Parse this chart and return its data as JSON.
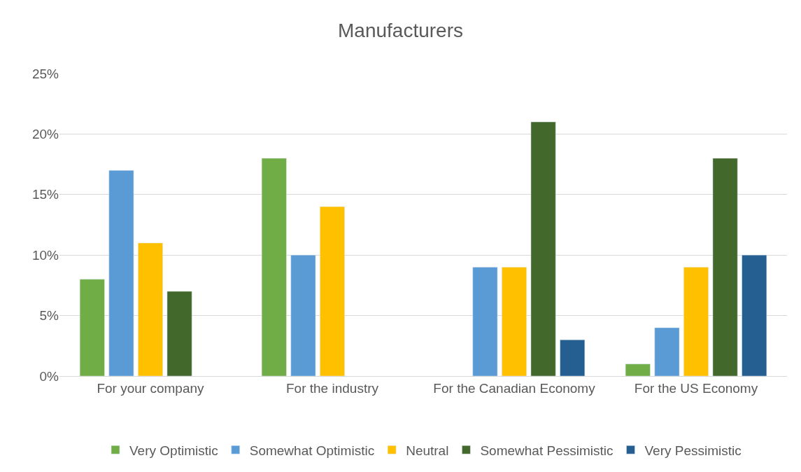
{
  "chart_data": {
    "type": "bar",
    "title": "Manufacturers",
    "categories": [
      "For your company",
      "For the industry",
      "For the Canadian Economy",
      "For the US Economy"
    ],
    "series": [
      {
        "name": "Very Optimistic",
        "color": "#70ad47",
        "values": [
          8,
          18,
          null,
          1
        ]
      },
      {
        "name": "Somewhat Optimistic",
        "color": "#5b9bd5",
        "values": [
          17,
          10,
          9,
          4
        ]
      },
      {
        "name": "Neutral",
        "color": "#ffc000",
        "values": [
          11,
          14,
          9,
          9
        ]
      },
      {
        "name": "Somewhat Pessimistic",
        "color": "#43682b",
        "values": [
          7,
          null,
          21,
          18
        ]
      },
      {
        "name": "Very Pessimistic",
        "color": "#255e91",
        "values": [
          null,
          null,
          3,
          10
        ]
      }
    ],
    "ylim": [
      0,
      25
    ],
    "yticks": [
      {
        "value": 0,
        "label": "0%"
      },
      {
        "value": 5,
        "label": "5%"
      },
      {
        "value": 10,
        "label": "10%"
      },
      {
        "value": 15,
        "label": "15%"
      },
      {
        "value": 20,
        "label": "20%"
      },
      {
        "value": 25,
        "label": "25%"
      }
    ],
    "grid": "y",
    "legend": "bottom"
  }
}
